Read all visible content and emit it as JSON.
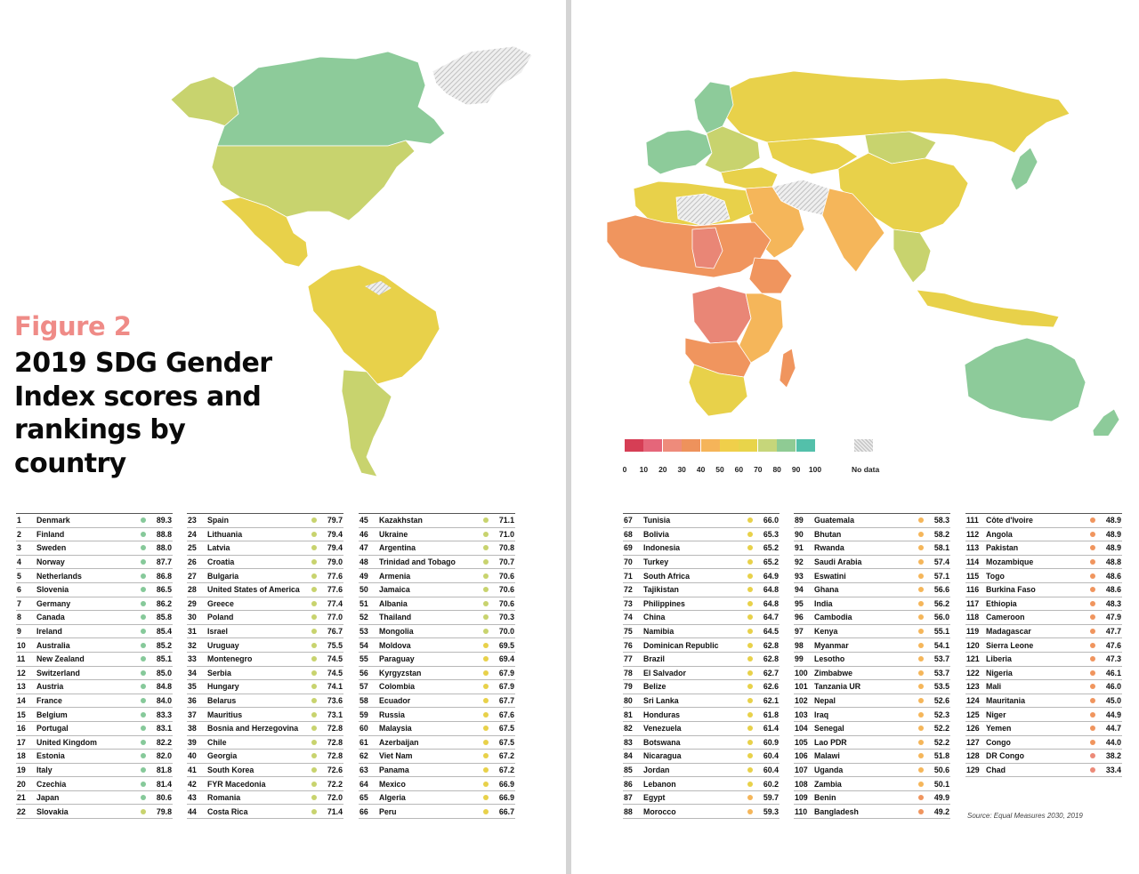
{
  "figure_label": "Figure 2",
  "title": "2019 SDG Gender Index scores and rankings by country",
  "source": "Source: Equal Measures 2030, 2019",
  "legend": {
    "ticks": [
      "0",
      "10",
      "20",
      "30",
      "40",
      "50",
      "60",
      "70",
      "80",
      "90",
      "100"
    ],
    "colors": [
      "#d63e55",
      "#e5667a",
      "#ee8b7b",
      "#ee925c",
      "#f5b459",
      "#f0cf4a",
      "#e8d44a",
      "#c6d67a",
      "#8fcb94",
      "#53c0aa"
    ],
    "no_data_label": "No data"
  },
  "chart_data": {
    "type": "table",
    "columns": [
      "rank",
      "country",
      "score"
    ],
    "rows": [
      {
        "rank": "1",
        "country": "Denmark",
        "score": "89.3",
        "color": "#86c99a"
      },
      {
        "rank": "2",
        "country": "Finland",
        "score": "88.8",
        "color": "#86c99a"
      },
      {
        "rank": "3",
        "country": "Sweden",
        "score": "88.0",
        "color": "#86c99a"
      },
      {
        "rank": "4",
        "country": "Norway",
        "score": "87.7",
        "color": "#86c99a"
      },
      {
        "rank": "5",
        "country": "Netherlands",
        "score": "86.8",
        "color": "#86c99a"
      },
      {
        "rank": "6",
        "country": "Slovenia",
        "score": "86.5",
        "color": "#86c99a"
      },
      {
        "rank": "7",
        "country": "Germany",
        "score": "86.2",
        "color": "#86c99a"
      },
      {
        "rank": "8",
        "country": "Canada",
        "score": "85.8",
        "color": "#86c99a"
      },
      {
        "rank": "9",
        "country": "Ireland",
        "score": "85.4",
        "color": "#86c99a"
      },
      {
        "rank": "10",
        "country": "Australia",
        "score": "85.2",
        "color": "#86c99a"
      },
      {
        "rank": "11",
        "country": "New Zealand",
        "score": "85.1",
        "color": "#86c99a"
      },
      {
        "rank": "12",
        "country": "Switzerland",
        "score": "85.0",
        "color": "#86c99a"
      },
      {
        "rank": "13",
        "country": "Austria",
        "score": "84.8",
        "color": "#86c99a"
      },
      {
        "rank": "14",
        "country": "France",
        "score": "84.0",
        "color": "#86c99a"
      },
      {
        "rank": "15",
        "country": "Belgium",
        "score": "83.3",
        "color": "#86c99a"
      },
      {
        "rank": "16",
        "country": "Portugal",
        "score": "83.1",
        "color": "#86c99a"
      },
      {
        "rank": "17",
        "country": "United Kingdom",
        "score": "82.2",
        "color": "#86c99a"
      },
      {
        "rank": "18",
        "country": "Estonia",
        "score": "82.0",
        "color": "#86c99a"
      },
      {
        "rank": "19",
        "country": "Italy",
        "score": "81.8",
        "color": "#86c99a"
      },
      {
        "rank": "20",
        "country": "Czechia",
        "score": "81.4",
        "color": "#86c99a"
      },
      {
        "rank": "21",
        "country": "Japan",
        "score": "80.6",
        "color": "#86c99a"
      },
      {
        "rank": "22",
        "country": "Slovakia",
        "score": "79.8",
        "color": "#c8d36e"
      },
      {
        "rank": "23",
        "country": "Spain",
        "score": "79.7",
        "color": "#c8d36e"
      },
      {
        "rank": "24",
        "country": "Lithuania",
        "score": "79.4",
        "color": "#c8d36e"
      },
      {
        "rank": "25",
        "country": "Latvia",
        "score": "79.4",
        "color": "#c8d36e"
      },
      {
        "rank": "26",
        "country": "Croatia",
        "score": "79.0",
        "color": "#c8d36e"
      },
      {
        "rank": "27",
        "country": "Bulgaria",
        "score": "77.6",
        "color": "#c8d36e"
      },
      {
        "rank": "28",
        "country": "United States of America",
        "score": "77.6",
        "color": "#c8d36e"
      },
      {
        "rank": "29",
        "country": "Greece",
        "score": "77.4",
        "color": "#c8d36e"
      },
      {
        "rank": "30",
        "country": "Poland",
        "score": "77.0",
        "color": "#c8d36e"
      },
      {
        "rank": "31",
        "country": "Israel",
        "score": "76.7",
        "color": "#c8d36e"
      },
      {
        "rank": "32",
        "country": "Uruguay",
        "score": "75.5",
        "color": "#c8d36e"
      },
      {
        "rank": "33",
        "country": "Montenegro",
        "score": "74.5",
        "color": "#c8d36e"
      },
      {
        "rank": "34",
        "country": "Serbia",
        "score": "74.5",
        "color": "#c8d36e"
      },
      {
        "rank": "35",
        "country": "Hungary",
        "score": "74.1",
        "color": "#c8d36e"
      },
      {
        "rank": "36",
        "country": "Belarus",
        "score": "73.6",
        "color": "#c8d36e"
      },
      {
        "rank": "37",
        "country": "Mauritius",
        "score": "73.1",
        "color": "#c8d36e"
      },
      {
        "rank": "38",
        "country": "Bosnia and Herzegovina",
        "score": "72.8",
        "color": "#c8d36e"
      },
      {
        "rank": "39",
        "country": "Chile",
        "score": "72.8",
        "color": "#c8d36e"
      },
      {
        "rank": "40",
        "country": "Georgia",
        "score": "72.8",
        "color": "#c8d36e"
      },
      {
        "rank": "41",
        "country": "South Korea",
        "score": "72.6",
        "color": "#c8d36e"
      },
      {
        "rank": "42",
        "country": "FYR Macedonia",
        "score": "72.2",
        "color": "#c8d36e"
      },
      {
        "rank": "43",
        "country": "Romania",
        "score": "72.0",
        "color": "#c8d36e"
      },
      {
        "rank": "44",
        "country": "Costa Rica",
        "score": "71.4",
        "color": "#c8d36e"
      },
      {
        "rank": "45",
        "country": "Kazakhstan",
        "score": "71.1",
        "color": "#c8d36e"
      },
      {
        "rank": "46",
        "country": "Ukraine",
        "score": "71.0",
        "color": "#c8d36e"
      },
      {
        "rank": "47",
        "country": "Argentina",
        "score": "70.8",
        "color": "#c8d36e"
      },
      {
        "rank": "48",
        "country": "Trinidad and Tobago",
        "score": "70.7",
        "color": "#c8d36e"
      },
      {
        "rank": "49",
        "country": "Armenia",
        "score": "70.6",
        "color": "#c8d36e"
      },
      {
        "rank": "50",
        "country": "Jamaica",
        "score": "70.6",
        "color": "#c8d36e"
      },
      {
        "rank": "51",
        "country": "Albania",
        "score": "70.6",
        "color": "#c8d36e"
      },
      {
        "rank": "52",
        "country": "Thailand",
        "score": "70.3",
        "color": "#c8d36e"
      },
      {
        "rank": "53",
        "country": "Mongolia",
        "score": "70.0",
        "color": "#c8d36e"
      },
      {
        "rank": "54",
        "country": "Moldova",
        "score": "69.5",
        "color": "#e8d14a"
      },
      {
        "rank": "55",
        "country": "Paraguay",
        "score": "69.4",
        "color": "#e8d14a"
      },
      {
        "rank": "56",
        "country": "Kyrgyzstan",
        "score": "67.9",
        "color": "#e8d14a"
      },
      {
        "rank": "57",
        "country": "Colombia",
        "score": "67.9",
        "color": "#e8d14a"
      },
      {
        "rank": "58",
        "country": "Ecuador",
        "score": "67.7",
        "color": "#e8d14a"
      },
      {
        "rank": "59",
        "country": "Russia",
        "score": "67.6",
        "color": "#e8d14a"
      },
      {
        "rank": "60",
        "country": "Malaysia",
        "score": "67.5",
        "color": "#e8d14a"
      },
      {
        "rank": "61",
        "country": "Azerbaijan",
        "score": "67.5",
        "color": "#e8d14a"
      },
      {
        "rank": "62",
        "country": "Viet Nam",
        "score": "67.2",
        "color": "#e8d14a"
      },
      {
        "rank": "63",
        "country": "Panama",
        "score": "67.2",
        "color": "#e8d14a"
      },
      {
        "rank": "64",
        "country": "Mexico",
        "score": "66.9",
        "color": "#e8d14a"
      },
      {
        "rank": "65",
        "country": "Algeria",
        "score": "66.9",
        "color": "#e8d14a"
      },
      {
        "rank": "66",
        "country": "Peru",
        "score": "66.7",
        "color": "#e8d14a"
      },
      {
        "rank": "67",
        "country": "Tunisia",
        "score": "66.0",
        "color": "#e8d14a"
      },
      {
        "rank": "68",
        "country": "Bolivia",
        "score": "65.3",
        "color": "#e8d14a"
      },
      {
        "rank": "69",
        "country": "Indonesia",
        "score": "65.2",
        "color": "#e8d14a"
      },
      {
        "rank": "70",
        "country": "Turkey",
        "score": "65.2",
        "color": "#e8d14a"
      },
      {
        "rank": "71",
        "country": "South Africa",
        "score": "64.9",
        "color": "#e8d14a"
      },
      {
        "rank": "72",
        "country": "Tajikistan",
        "score": "64.8",
        "color": "#e8d14a"
      },
      {
        "rank": "73",
        "country": "Philippines",
        "score": "64.8",
        "color": "#e8d14a"
      },
      {
        "rank": "74",
        "country": "China",
        "score": "64.7",
        "color": "#e8d14a"
      },
      {
        "rank": "75",
        "country": "Namibia",
        "score": "64.5",
        "color": "#e8d14a"
      },
      {
        "rank": "76",
        "country": "Dominican Republic",
        "score": "62.8",
        "color": "#e8d14a"
      },
      {
        "rank": "77",
        "country": "Brazil",
        "score": "62.8",
        "color": "#e8d14a"
      },
      {
        "rank": "78",
        "country": "El Salvador",
        "score": "62.7",
        "color": "#e8d14a"
      },
      {
        "rank": "79",
        "country": "Belize",
        "score": "62.6",
        "color": "#e8d14a"
      },
      {
        "rank": "80",
        "country": "Sri Lanka",
        "score": "62.1",
        "color": "#e8d14a"
      },
      {
        "rank": "81",
        "country": "Honduras",
        "score": "61.8",
        "color": "#e8d14a"
      },
      {
        "rank": "82",
        "country": "Venezuela",
        "score": "61.4",
        "color": "#e8d14a"
      },
      {
        "rank": "83",
        "country": "Botswana",
        "score": "60.9",
        "color": "#e8d14a"
      },
      {
        "rank": "84",
        "country": "Nicaragua",
        "score": "60.4",
        "color": "#e8d14a"
      },
      {
        "rank": "85",
        "country": "Jordan",
        "score": "60.4",
        "color": "#e8d14a"
      },
      {
        "rank": "86",
        "country": "Lebanon",
        "score": "60.2",
        "color": "#e8d14a"
      },
      {
        "rank": "87",
        "country": "Egypt",
        "score": "59.7",
        "color": "#f5b65a"
      },
      {
        "rank": "88",
        "country": "Morocco",
        "score": "59.3",
        "color": "#f5b65a"
      },
      {
        "rank": "89",
        "country": "Guatemala",
        "score": "58.3",
        "color": "#f5b65a"
      },
      {
        "rank": "90",
        "country": "Bhutan",
        "score": "58.2",
        "color": "#f5b65a"
      },
      {
        "rank": "91",
        "country": "Rwanda",
        "score": "58.1",
        "color": "#f5b65a"
      },
      {
        "rank": "92",
        "country": "Saudi Arabia",
        "score": "57.4",
        "color": "#f5b65a"
      },
      {
        "rank": "93",
        "country": "Eswatini",
        "score": "57.1",
        "color": "#f5b65a"
      },
      {
        "rank": "94",
        "country": "Ghana",
        "score": "56.6",
        "color": "#f5b65a"
      },
      {
        "rank": "95",
        "country": "India",
        "score": "56.2",
        "color": "#f5b65a"
      },
      {
        "rank": "96",
        "country": "Cambodia",
        "score": "56.0",
        "color": "#f5b65a"
      },
      {
        "rank": "97",
        "country": "Kenya",
        "score": "55.1",
        "color": "#f5b65a"
      },
      {
        "rank": "98",
        "country": "Myanmar",
        "score": "54.1",
        "color": "#f5b65a"
      },
      {
        "rank": "99",
        "country": "Lesotho",
        "score": "53.7",
        "color": "#f5b65a"
      },
      {
        "rank": "100",
        "country": "Zimbabwe",
        "score": "53.7",
        "color": "#f5b65a"
      },
      {
        "rank": "101",
        "country": "Tanzania UR",
        "score": "53.5",
        "color": "#f5b65a"
      },
      {
        "rank": "102",
        "country": "Nepal",
        "score": "52.6",
        "color": "#f5b65a"
      },
      {
        "rank": "103",
        "country": "Iraq",
        "score": "52.3",
        "color": "#f5b65a"
      },
      {
        "rank": "104",
        "country": "Senegal",
        "score": "52.2",
        "color": "#f5b65a"
      },
      {
        "rank": "105",
        "country": "Lao PDR",
        "score": "52.2",
        "color": "#f5b65a"
      },
      {
        "rank": "106",
        "country": "Malawi",
        "score": "51.8",
        "color": "#f5b65a"
      },
      {
        "rank": "107",
        "country": "Uganda",
        "score": "50.6",
        "color": "#f5b65a"
      },
      {
        "rank": "108",
        "country": "Zambia",
        "score": "50.1",
        "color": "#f5b65a"
      },
      {
        "rank": "109",
        "country": "Benin",
        "score": "49.9",
        "color": "#f0955e"
      },
      {
        "rank": "110",
        "country": "Bangladesh",
        "score": "49.2",
        "color": "#f0955e"
      },
      {
        "rank": "111",
        "country": "Côte d'Ivoire",
        "score": "48.9",
        "color": "#f0955e"
      },
      {
        "rank": "112",
        "country": "Angola",
        "score": "48.9",
        "color": "#f0955e"
      },
      {
        "rank": "113",
        "country": "Pakistan",
        "score": "48.9",
        "color": "#f0955e"
      },
      {
        "rank": "114",
        "country": "Mozambique",
        "score": "48.8",
        "color": "#f0955e"
      },
      {
        "rank": "115",
        "country": "Togo",
        "score": "48.6",
        "color": "#f0955e"
      },
      {
        "rank": "116",
        "country": "Burkina Faso",
        "score": "48.6",
        "color": "#f0955e"
      },
      {
        "rank": "117",
        "country": "Ethiopia",
        "score": "48.3",
        "color": "#f0955e"
      },
      {
        "rank": "118",
        "country": "Cameroon",
        "score": "47.9",
        "color": "#f0955e"
      },
      {
        "rank": "119",
        "country": "Madagascar",
        "score": "47.7",
        "color": "#f0955e"
      },
      {
        "rank": "120",
        "country": "Sierra Leone",
        "score": "47.6",
        "color": "#f0955e"
      },
      {
        "rank": "121",
        "country": "Liberia",
        "score": "47.3",
        "color": "#f0955e"
      },
      {
        "rank": "122",
        "country": "Nigeria",
        "score": "46.1",
        "color": "#f0955e"
      },
      {
        "rank": "123",
        "country": "Mali",
        "score": "46.0",
        "color": "#f0955e"
      },
      {
        "rank": "124",
        "country": "Mauritania",
        "score": "45.0",
        "color": "#f0955e"
      },
      {
        "rank": "125",
        "country": "Niger",
        "score": "44.9",
        "color": "#f0955e"
      },
      {
        "rank": "126",
        "country": "Yemen",
        "score": "44.7",
        "color": "#f0955e"
      },
      {
        "rank": "127",
        "country": "Congo",
        "score": "44.0",
        "color": "#f0955e"
      },
      {
        "rank": "128",
        "country": "DR Congo",
        "score": "38.2",
        "color": "#ec8a78"
      },
      {
        "rank": "129",
        "country": "Chad",
        "score": "33.4",
        "color": "#ec8a78"
      }
    ]
  }
}
